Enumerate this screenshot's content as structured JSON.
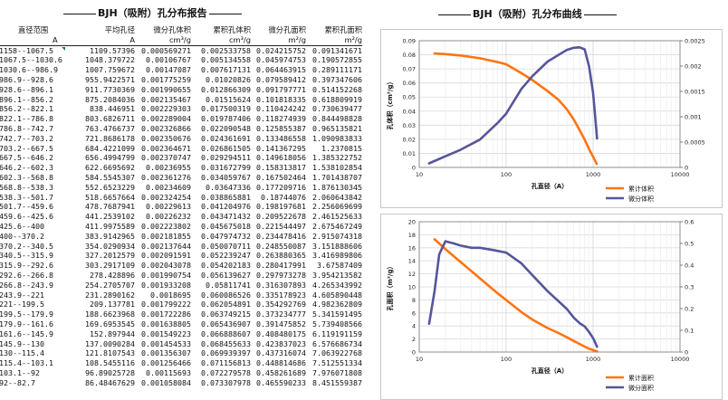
{
  "report": {
    "title": "BJH（吸附）孔分布报告",
    "headers": [
      "直径范围",
      "平均孔径",
      "微分孔体积",
      "累积孔体积",
      "微分孔面积",
      "累积孔面积"
    ],
    "units": [
      "A",
      "A",
      "cm³/g",
      "cm³/g",
      "m²/g",
      "m²/g"
    ],
    "rows": [
      [
        "1158--1067.5",
        "1109.57396",
        "0.000569271",
        "0.002533758",
        "0.024215752",
        "0.091341671"
      ],
      [
        "1067.5--1030.6",
        "1048.379722",
        "0.00106767",
        "0.005134558",
        "0.045974753",
        "0.190572855"
      ],
      [
        "1030.6--986.9",
        "1007.759672",
        "0.00147087",
        "0.007617131",
        "0.064463915",
        "0.289111171"
      ],
      [
        "986.9--928.6",
        "955.9422571",
        "0.001775259",
        "0.01020826",
        "0.079589412",
        "0.397347606"
      ],
      [
        "928.6--896.1",
        "911.7730369",
        "0.001990655",
        "0.012866309",
        "0.091797771",
        "0.514152268"
      ],
      [
        "896.1--856.2",
        "875.2084036",
        "0.002135467",
        "0.01515624",
        "0.101818335",
        "0.618809919"
      ],
      [
        "856.2--822.1",
        "838.446951",
        "0.002229303",
        "0.017500319",
        "0.110424242",
        "0.730639477"
      ],
      [
        "822.1--786.8",
        "803.6826711",
        "0.002289004",
        "0.019787406",
        "0.118274939",
        "0.844498828"
      ],
      [
        "786.8--742.7",
        "763.4766737",
        "0.002326866",
        "0.022090548",
        "0.125855387",
        "0.965135821"
      ],
      [
        "742.7--703.2",
        "721.8686178",
        "0.002350676",
        "0.024361691",
        "0.133486558",
        "1.090983833"
      ],
      [
        "703.2--667.5",
        "684.4221099",
        "0.002364671",
        "0.026861505",
        "0.141367295",
        "1.2370815"
      ],
      [
        "667.5--646.2",
        "656.4994799",
        "0.002370747",
        "0.029294511",
        "0.149618056",
        "1.385322752"
      ],
      [
        "646.2--602.3",
        "622.6695692",
        "0.00236955",
        "0.031672799",
        "0.158313817",
        "1.538102854"
      ],
      [
        "602.3--568.8",
        "584.5545307",
        "0.002361276",
        "0.034059767",
        "0.167502464",
        "1.701438707"
      ],
      [
        "568.8--538.3",
        "552.6523229",
        "0.00234609",
        "0.03647336",
        "0.177209716",
        "1.876130345"
      ],
      [
        "538.3--501.7",
        "518.6657664",
        "0.002324254",
        "0.038865881",
        "0.18744076",
        "2.060643842"
      ],
      [
        "501.7--459.6",
        "478.7687941",
        "0.00229613",
        "0.041204976",
        "0.198197681",
        "2.256069699"
      ],
      [
        "459.6--425.6",
        "441.2539102",
        "0.00226232",
        "0.043471432",
        "0.209522678",
        "2.461525633"
      ],
      [
        "425.6--400",
        "411.9975589",
        "0.002223802",
        "0.045675018",
        "0.221544497",
        "2.675467249"
      ],
      [
        "400--370.2",
        "383.9142965",
        "0.002181855",
        "0.047974732",
        "0.234478416",
        "2.915074318"
      ],
      [
        "370.2--340.5",
        "354.0290934",
        "0.002137644",
        "0.050070711",
        "0.248550087",
        "3.151888606"
      ],
      [
        "340.5--315.9",
        "327.2012579",
        "0.002091591",
        "0.052239247",
        "0.263880365",
        "3.416989806"
      ],
      [
        "315.9--292.6",
        "303.2917109",
        "0.002043078",
        "0.054202183",
        "0.280417991",
        "3.67587409"
      ],
      [
        "292.6--266.8",
        "278.428896",
        "0.001990754",
        "0.056139627",
        "0.297973278",
        "3.954213582"
      ],
      [
        "266.8--243.9",
        "254.2705707",
        "0.001933208",
        "0.05811741",
        "0.316307893",
        "4.265343992"
      ],
      [
        "243.9--221",
        "231.2890162",
        "0.0018695",
        "0.060086526",
        "0.335178923",
        "4.605890448"
      ],
      [
        "221--199.5",
        "209.137781",
        "0.001799222",
        "0.062054891",
        "0.354292769",
        "4.982362809"
      ],
      [
        "199.5--179.9",
        "188.6623968",
        "0.001722286",
        "0.063749215",
        "0.373234777",
        "5.341591495"
      ],
      [
        "179.9--161.6",
        "169.6953545",
        "0.001638805",
        "0.065436907",
        "0.391475852",
        "5.739408566"
      ],
      [
        "161.6--145.9",
        "152.897944",
        "0.001549223",
        "0.066888607",
        "0.408480175",
        "6.119191159"
      ],
      [
        "145.9--130",
        "137.0090284",
        "0.001454533",
        "0.068455633",
        "0.423837023",
        "6.576686734"
      ],
      [
        "130--115.4",
        "121.8107543",
        "0.001356307",
        "0.069939397",
        "0.437316074",
        "7.063922768"
      ],
      [
        "115.4--103.1",
        "108.5455116",
        "0.001256466",
        "0.071156813",
        "0.448814686",
        "7.512551334"
      ],
      [
        "103.1--92",
        "96.89025728",
        "0.00115693",
        "0.072279578",
        "0.458261689",
        "7.976071808"
      ],
      [
        "92--82.7",
        "86.48467629",
        "0.001058084",
        "0.073307978",
        "0.465590233",
        "8.451559387"
      ]
    ]
  },
  "curves": {
    "title": "BJH（吸附）孔分布曲线",
    "colors": {
      "cumulative": "#ff7410",
      "differential": "#55569a"
    },
    "chart1": {
      "ylabel": "孔体积（cm³/g）",
      "xlabel": "孔直径（A）",
      "legend": [
        "累计体积",
        "微分体积"
      ],
      "x_ticks": [
        "10",
        "100",
        "1000",
        "10000"
      ],
      "y_left_ticks": [
        "0",
        "0.01",
        "0.02",
        "0.03",
        "0.04",
        "0.05",
        "0.06",
        "0.07",
        "0.08",
        "0.09"
      ],
      "y_right_ticks": [
        "0",
        "0.0005",
        "0.001",
        "0.0015",
        "0.002",
        "0.0025"
      ]
    },
    "chart2": {
      "ylabel": "孔面积（m²/g）",
      "xlabel": "孔直径（A）",
      "legend": [
        "累计面积",
        "微分面积"
      ],
      "x_ticks": [
        "10",
        "100",
        "1000",
        "10000"
      ],
      "y_left_ticks": [
        "0",
        "2",
        "4",
        "6",
        "8",
        "10",
        "12",
        "14",
        "16",
        "18",
        "20"
      ],
      "y_right_ticks": [
        "0",
        "0.1",
        "0.2",
        "0.3",
        "0.4",
        "0.5",
        "0.6"
      ]
    }
  },
  "chart_data": [
    {
      "type": "line",
      "xlabel": "孔直径（A）",
      "ylabel": "孔体积（cm³/g）",
      "x_scale": "log",
      "xlim": [
        10,
        10000
      ],
      "ylim_left": [
        0,
        0.09
      ],
      "ylim_right": [
        0,
        0.0025
      ],
      "series": [
        {
          "name": "累计体积",
          "axis": "left",
          "x": [
            15,
            20,
            30,
            50,
            80,
            100,
            150,
            200,
            300,
            400,
            500,
            600,
            700,
            800,
            900,
            1000,
            1100
          ],
          "values": [
            0.081,
            0.0805,
            0.0795,
            0.0775,
            0.0748,
            0.0733,
            0.0669,
            0.0621,
            0.0542,
            0.048,
            0.0412,
            0.034,
            0.0265,
            0.0198,
            0.0129,
            0.0076,
            0.0025
          ]
        },
        {
          "name": "微分体积",
          "axis": "right",
          "x": [
            13,
            20,
            30,
            50,
            80,
            100,
            150,
            200,
            300,
            400,
            500,
            600,
            700,
            800,
            900,
            1000,
            1050,
            1110
          ],
          "values": [
            8e-05,
            0.00022,
            0.00035,
            0.00055,
            0.00088,
            0.00106,
            0.00155,
            0.0018,
            0.00209,
            0.00222,
            0.00232,
            0.00236,
            0.00237,
            0.00233,
            0.00199,
            0.00147,
            0.00107,
            0.00057
          ]
        }
      ]
    },
    {
      "type": "line",
      "xlabel": "孔直径（A）",
      "ylabel": "孔面积（m²/g）",
      "x_scale": "log",
      "xlim": [
        10,
        10000
      ],
      "ylim_left": [
        0,
        20
      ],
      "ylim_right": [
        0,
        0.6
      ],
      "series": [
        {
          "name": "累计面积",
          "axis": "left",
          "x": [
            15,
            20,
            30,
            50,
            80,
            100,
            150,
            200,
            300,
            400,
            500,
            600,
            700,
            800,
            900,
            1000,
            1110
          ],
          "values": [
            17.3,
            15.8,
            13.8,
            11.3,
            9.0,
            7.98,
            6.12,
            4.98,
            3.68,
            2.92,
            2.26,
            1.7,
            1.24,
            0.84,
            0.51,
            0.29,
            0.09
          ]
        },
        {
          "name": "微分面积",
          "axis": "right",
          "x": [
            13,
            15,
            17,
            20,
            25,
            30,
            40,
            50,
            70,
            100,
            150,
            200,
            300,
            400,
            500,
            600,
            700,
            800,
            900,
            1000,
            1110
          ],
          "values": [
            0.13,
            0.28,
            0.45,
            0.51,
            0.5,
            0.49,
            0.48,
            0.48,
            0.47,
            0.458,
            0.408,
            0.354,
            0.28,
            0.234,
            0.198,
            0.158,
            0.133,
            0.118,
            0.092,
            0.064,
            0.024
          ]
        }
      ]
    }
  ]
}
